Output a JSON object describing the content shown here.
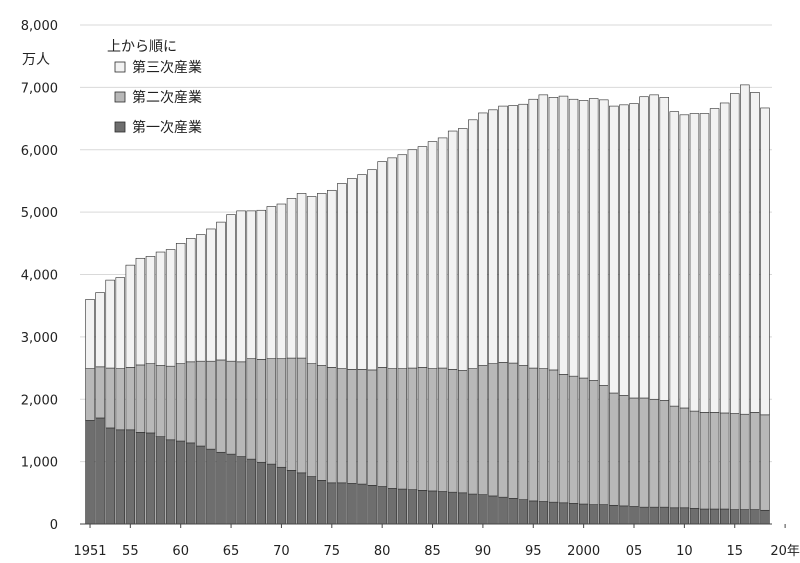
{
  "chart_data": {
    "type": "bar",
    "stacked": true,
    "unit_label": "万人",
    "legend_title": "上から順に",
    "legend_placement": "top-left",
    "grid": true,
    "ylim": [
      0,
      8000
    ],
    "yticks": [
      "0",
      "1,000",
      "2,000",
      "3,000",
      "4,000",
      "5,000",
      "6,000",
      "7,000",
      "8,000"
    ],
    "x_start_year": 1951,
    "xtick_labels": [
      {
        "year": 1951,
        "label": "1951"
      },
      {
        "year": 1955,
        "label": "55"
      },
      {
        "year": 1960,
        "label": "60"
      },
      {
        "year": 1965,
        "label": "65"
      },
      {
        "year": 1970,
        "label": "70"
      },
      {
        "year": 1975,
        "label": "75"
      },
      {
        "year": 1980,
        "label": "80"
      },
      {
        "year": 1985,
        "label": "85"
      },
      {
        "year": 1990,
        "label": "90"
      },
      {
        "year": 1995,
        "label": "95"
      },
      {
        "year": 2000,
        "label": "2000"
      },
      {
        "year": 2005,
        "label": "05"
      },
      {
        "year": 2010,
        "label": "10"
      },
      {
        "year": 2015,
        "label": "15"
      },
      {
        "year": 2020,
        "label": "20年"
      }
    ],
    "series": [
      {
        "name": "第三次産業",
        "color": "#f2f2f2",
        "values": [
          1110,
          1190,
          1410,
          1460,
          1640,
          1710,
          1720,
          1820,
          1870,
          1930,
          1980,
          2030,
          2120,
          2210,
          2350,
          2420,
          2370,
          2390,
          2440,
          2480,
          2560,
          2640,
          2680,
          2760,
          2840,
          2970,
          3060,
          3120,
          3210,
          3300,
          3380,
          3430,
          3500,
          3540,
          3640,
          3690,
          3820,
          3880,
          3990,
          4050,
          4070,
          4110,
          4130,
          4190,
          4310,
          4390,
          4370,
          4460,
          4440,
          4450,
          4520,
          4580,
          4600,
          4660,
          4720,
          4830,
          4880,
          4860,
          4720,
          4700,
          4770,
          4790,
          4870,
          4970,
          5130,
          5280,
          5130,
          4920
        ]
      },
      {
        "name": "第二次産業",
        "color": "#b8b8b8",
        "values": [
          830,
          820,
          960,
          980,
          1000,
          1080,
          1110,
          1140,
          1180,
          1240,
          1300,
          1360,
          1410,
          1480,
          1490,
          1520,
          1610,
          1650,
          1690,
          1740,
          1800,
          1840,
          1810,
          1840,
          1850,
          1830,
          1830,
          1840,
          1850,
          1910,
          1920,
          1930,
          1950,
          1970,
          1960,
          1980,
          1970,
          1960,
          2010,
          2070,
          2120,
          2160,
          2170,
          2150,
          2130,
          2130,
          2120,
          2060,
          2040,
          2020,
          1990,
          1910,
          1800,
          1770,
          1740,
          1750,
          1730,
          1710,
          1630,
          1600,
          1560,
          1550,
          1550,
          1540,
          1540,
          1530,
          1560,
          1530
        ]
      },
      {
        "name": "第一次産業",
        "color": "#6e6e6e",
        "values": [
          1660,
          1700,
          1540,
          1510,
          1510,
          1470,
          1460,
          1400,
          1350,
          1330,
          1300,
          1250,
          1200,
          1150,
          1120,
          1080,
          1040,
          990,
          960,
          910,
          860,
          820,
          760,
          700,
          660,
          660,
          650,
          640,
          620,
          600,
          570,
          560,
          550,
          540,
          530,
          520,
          510,
          500,
          480,
          470,
          450,
          430,
          410,
          390,
          370,
          360,
          350,
          340,
          330,
          320,
          310,
          310,
          300,
          290,
          280,
          270,
          270,
          270,
          260,
          260,
          250,
          240,
          240,
          240,
          230,
          230,
          230,
          220
        ]
      }
    ]
  }
}
